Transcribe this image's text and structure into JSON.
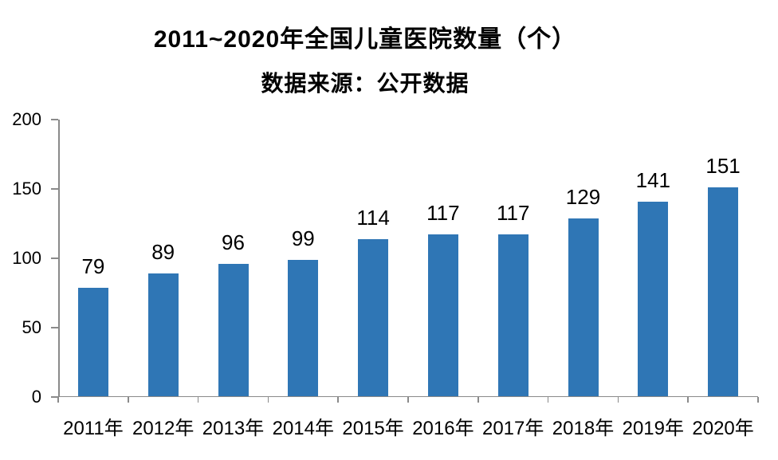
{
  "page": {
    "background": "#ffffff"
  },
  "chart_data": {
    "type": "bar",
    "title": "2011~2020年全国儿童医院数量（个）",
    "subtitle": "数据来源：公开数据",
    "categories": [
      "2011年",
      "2012年",
      "2013年",
      "2014年",
      "2015年",
      "2016年",
      "2017年",
      "2018年",
      "2019年",
      "2020年"
    ],
    "values": [
      79,
      89,
      96,
      99,
      114,
      117,
      117,
      129,
      141,
      151
    ],
    "xlabel": "",
    "ylabel": "",
    "ylim": [
      0,
      200
    ],
    "yticks": [
      0,
      50,
      100,
      150,
      200
    ],
    "grid": false,
    "legend": "none",
    "data_labels": true,
    "colors": {
      "bar": "#2F76B5",
      "axis": "#8A8A8A",
      "text": "#000000"
    }
  }
}
